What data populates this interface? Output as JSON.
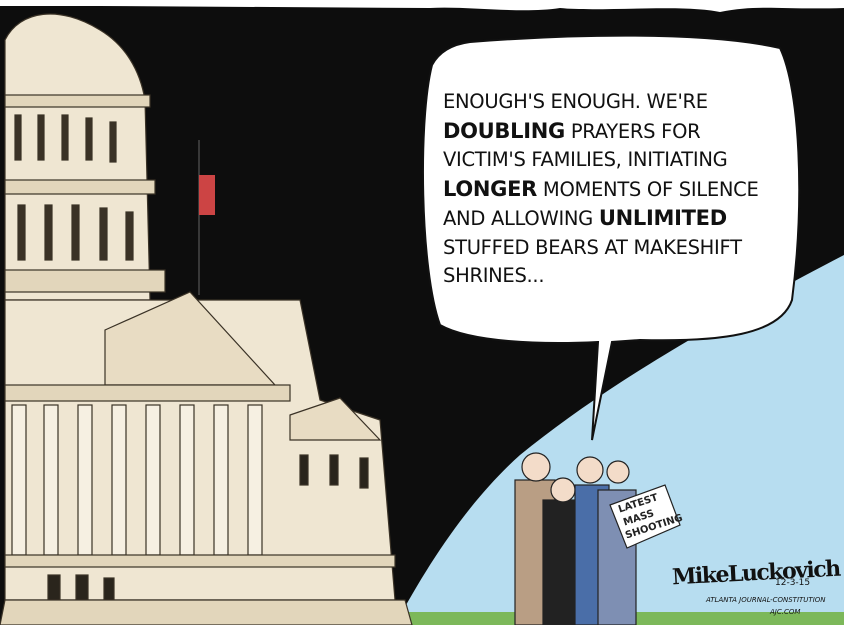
{
  "bubble": {
    "lines": [
      [
        {
          "text": "ENOUGH'S ENOUGH. WE'RE",
          "bold": false
        }
      ],
      [
        {
          "text": "DOUBLING",
          "bold": true
        },
        {
          "text": " PRAYERS FOR",
          "bold": false
        }
      ],
      [
        {
          "text": "VICTIM'S FAMILIES, INITIATING",
          "bold": false
        }
      ],
      [
        {
          "text": "LONGER",
          "bold": true
        },
        {
          "text": " MOMENTS OF SILENCE",
          "bold": false
        }
      ],
      [
        {
          "text": "AND ALLOWING ",
          "bold": false
        },
        {
          "text": "UNLIMITED",
          "bold": true
        }
      ],
      [
        {
          "text": "STUFFED BEARS AT MAKESHIFT",
          "bold": false
        }
      ],
      [
        {
          "text": "SHRINES...",
          "bold": false
        }
      ]
    ]
  },
  "sign": [
    "LATEST",
    "MASS",
    "SHOOTING"
  ],
  "signature": {
    "name": "MikeLuckovich",
    "date": "12-3-15",
    "paper": "ATLANTA JOURNAL-CONSTITUTION",
    "web": "AJC.COM"
  }
}
